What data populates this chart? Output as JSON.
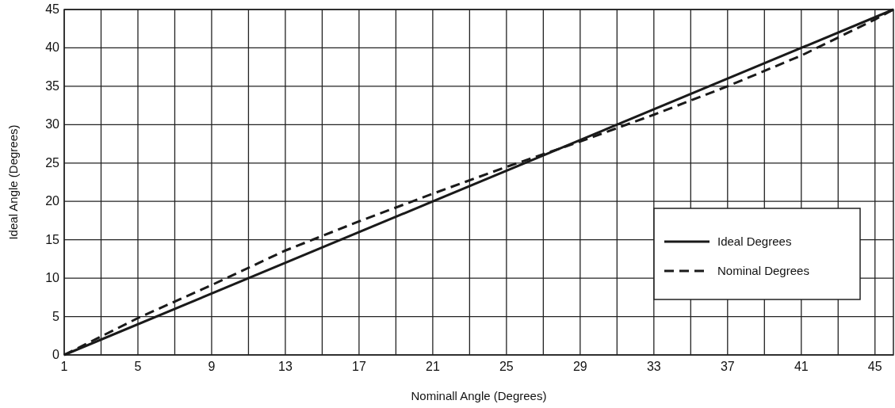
{
  "chart_data": {
    "type": "line",
    "xlabel": "Nominall Angle (Degrees)",
    "ylabel": "Ideal Angle (Degrees)",
    "xlim": [
      1,
      46
    ],
    "ylim": [
      0,
      45
    ],
    "xticks": [
      1,
      {
        "value": 3,
        "label": null
      },
      5,
      {
        "value": 7,
        "label": null
      },
      9,
      {
        "value": 11,
        "label": null
      },
      13,
      {
        "value": 15,
        "label": null
      },
      17,
      {
        "value": 19,
        "label": null
      },
      21,
      {
        "value": 23,
        "label": null
      },
      25,
      {
        "value": 27,
        "label": null
      },
      29,
      {
        "value": 31,
        "label": null
      },
      33,
      {
        "value": 35,
        "label": null
      },
      37,
      {
        "value": 39,
        "label": null
      },
      41,
      {
        "value": 43,
        "label": null
      },
      45
    ],
    "yticks": [
      0,
      5,
      10,
      15,
      20,
      25,
      30,
      35,
      40,
      45
    ],
    "grid": true,
    "legend": "right",
    "marker": "none",
    "series": [
      {
        "name": "Ideal Degrees",
        "color": "#1a1a1a",
        "x": [
          1,
          46
        ],
        "values": [
          0,
          45
        ],
        "line_style": "solid"
      },
      {
        "name": "Nominal Degrees",
        "color": "#1a1a1a",
        "x": [
          1,
          5,
          9,
          13,
          17,
          21,
          25,
          29,
          33,
          37,
          41,
          45,
          46
        ],
        "values": [
          0,
          4.8,
          9.1,
          13.6,
          17.4,
          21,
          24.5,
          27.8,
          31.3,
          35,
          39,
          43.7,
          45
        ],
        "line_style": "dashed"
      }
    ]
  }
}
